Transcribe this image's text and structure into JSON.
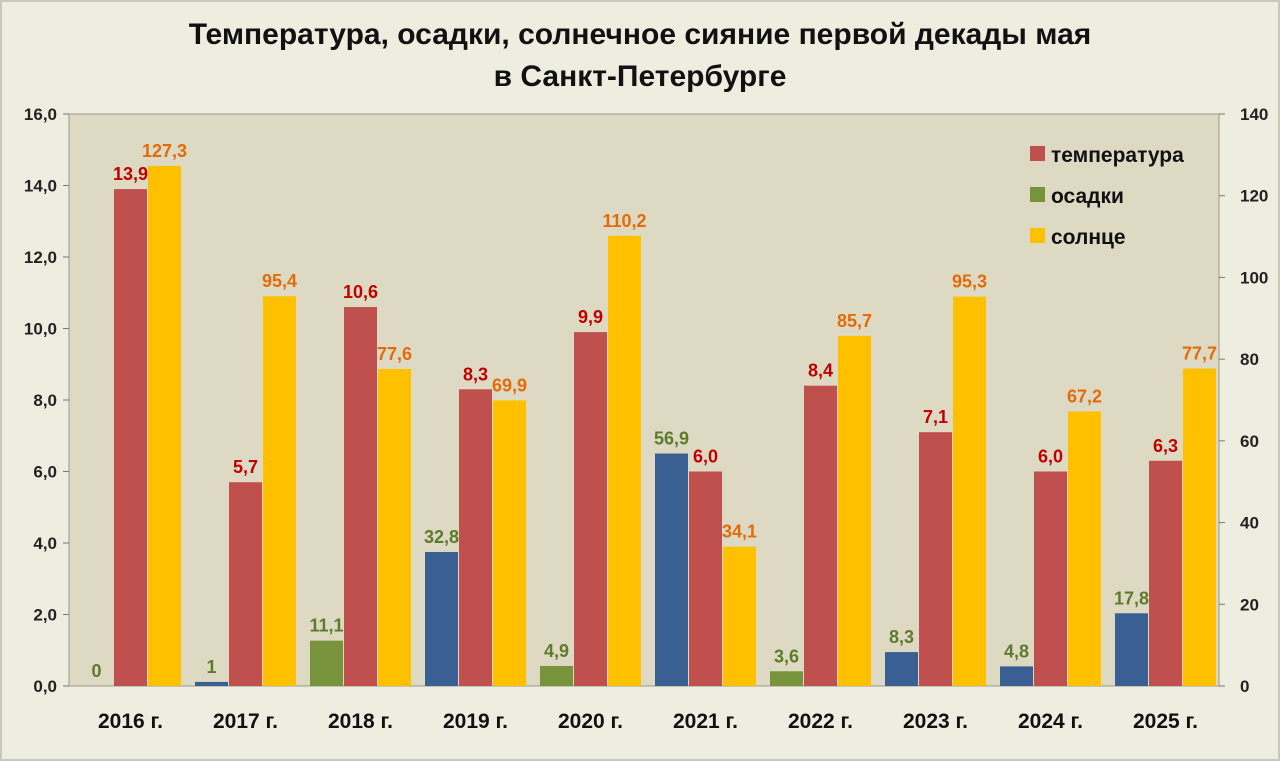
{
  "title_line1": "Температура, осадки, солнечное сияние первой декады мая",
  "title_line2": "в Санкт-Петербурге",
  "chart_data": {
    "type": "bar",
    "categories": [
      "2016 г.",
      "2017 г.",
      "2018 г.",
      "2019 г.",
      "2020 г.",
      "2021 г.",
      "2022 г.",
      "2023 г.",
      "2024 г.",
      "2025 г."
    ],
    "y_left": {
      "range": [
        0,
        16
      ],
      "ticks": [
        "0,0",
        "2,0",
        "4,0",
        "6,0",
        "8,0",
        "10,0",
        "12,0",
        "14,0",
        "16,0"
      ]
    },
    "y_right": {
      "range": [
        0,
        140
      ],
      "ticks": [
        "0",
        "20",
        "40",
        "60",
        "80",
        "100",
        "120",
        "140"
      ]
    },
    "series": [
      {
        "name": "осадки",
        "axis": "right",
        "values": [
          0,
          1,
          11.1,
          32.8,
          4.9,
          56.9,
          3.6,
          8.3,
          4.8,
          17.8
        ],
        "labels": [
          "0",
          "1",
          "11,1",
          "32,8",
          "4,9",
          "56,9",
          "3,6",
          "8,3",
          "4,8",
          "17,8"
        ],
        "colors": [
          "#3a5f93",
          "#3a5f93",
          "#77933c",
          "#3a5f93",
          "#77933c",
          "#3a5f93",
          "#77933c",
          "#3a5f93",
          "#3a5f93",
          "#3a5f93"
        ],
        "label_color": "#5e7a2c"
      },
      {
        "name": "температура",
        "axis": "left",
        "values": [
          13.9,
          5.7,
          10.6,
          8.3,
          9.9,
          6.0,
          8.4,
          7.1,
          6.0,
          6.3
        ],
        "labels": [
          "13,9",
          "5,7",
          "10,6",
          "8,3",
          "9,9",
          "6,0",
          "8,4",
          "7,1",
          "6,0",
          "6,3"
        ],
        "color": "#c0504d",
        "label_color": "#c00000"
      },
      {
        "name": "солнце",
        "axis": "right",
        "values": [
          127.3,
          95.4,
          77.6,
          69.9,
          110.2,
          34.1,
          85.7,
          95.3,
          67.2,
          77.7
        ],
        "labels": [
          "127,3",
          "95,4",
          "77,6",
          "69,9",
          "110,2",
          "34,1",
          "85,7",
          "95,3",
          "67,2",
          "77,7"
        ],
        "color": "#ffc000",
        "label_color": "#e36c09"
      }
    ],
    "legend": {
      "position": "top-right",
      "items": [
        {
          "name": "температура",
          "color": "#c0504d"
        },
        {
          "name": "осадки",
          "color": "#77933c"
        },
        {
          "name": "солнце",
          "color": "#ffc000"
        }
      ]
    },
    "plot_background": "#ddd9c3",
    "grid": false
  }
}
